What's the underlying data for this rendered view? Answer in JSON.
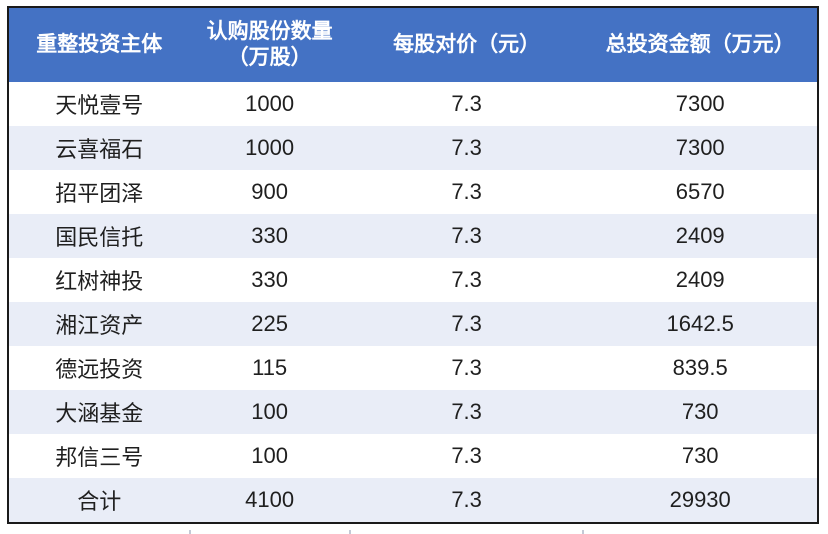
{
  "colors": {
    "header_bg": "#4472c4",
    "header_fg": "#ffffff",
    "alt_row_bg": "#e9edf7",
    "border_color": "#1a1a1a",
    "body_fg": "#1f1f1f"
  },
  "chart_data": {
    "type": "table",
    "title": "",
    "columns": [
      "重整投资主体",
      "认购股份数量\n（万股）",
      "每股对价（元）",
      "总投资金额（万元）"
    ],
    "rows": [
      [
        "天悦壹号",
        "1000",
        "7.3",
        "7300"
      ],
      [
        "云喜福石",
        "1000",
        "7.3",
        "7300"
      ],
      [
        "招平团泽",
        "900",
        "7.3",
        "6570"
      ],
      [
        "国民信托",
        "330",
        "7.3",
        "2409"
      ],
      [
        "红树神投",
        "330",
        "7.3",
        "2409"
      ],
      [
        "湘江资产",
        "225",
        "7.3",
        "1642.5"
      ],
      [
        "德远投资",
        "115",
        "7.3",
        "839.5"
      ],
      [
        "大涵基金",
        "100",
        "7.3",
        "730"
      ],
      [
        "邦信三号",
        "100",
        "7.3",
        "730"
      ],
      [
        "合计",
        "4100",
        "7.3",
        "29930"
      ]
    ],
    "layout_hints": {
      "header_rows": 1,
      "alternating_rows": "even rows and total row shaded light blue",
      "alignment": "all cells centered",
      "outer_border": "dark 2px, no inner gridlines",
      "total_row_label": "合计"
    }
  }
}
